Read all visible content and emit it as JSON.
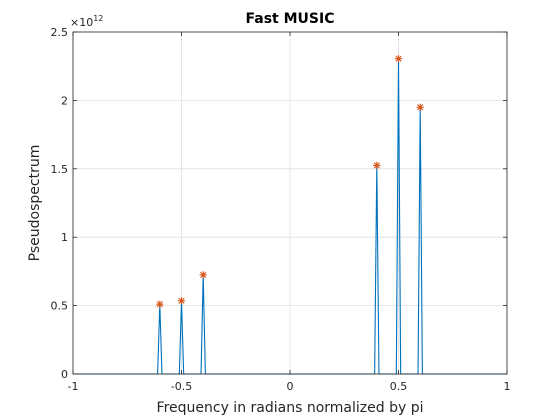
{
  "chart_data": {
    "type": "line",
    "title": "Fast MUSIC",
    "xlabel": "Frequency in radians normalized by pi",
    "ylabel": "Pseudospectrum",
    "xlim": [
      -1,
      1
    ],
    "ylim": [
      0,
      2.5
    ],
    "y_exponent_label": "×10",
    "y_exponent_power": "12",
    "x_ticks": [
      -1,
      -0.5,
      0,
      0.5,
      1
    ],
    "x_tick_labels": [
      "-1",
      "-0.5",
      "0",
      "0.5",
      "1"
    ],
    "y_ticks": [
      0,
      0.5,
      1,
      1.5,
      2,
      2.5
    ],
    "y_tick_labels": [
      "0",
      "0.5",
      "1",
      "1.5",
      "2",
      "2.5"
    ],
    "grid": true,
    "line_color": "#0072BD",
    "marker_color": "#D95319",
    "series": [
      {
        "x": [
          -1,
          -0.61,
          -0.6,
          -0.59,
          -0.51,
          -0.5,
          -0.49,
          -0.41,
          -0.4,
          -0.39,
          0.39,
          0.4,
          0.41,
          0.49,
          0.5,
          0.51,
          0.59,
          0.6,
          0.61,
          1
        ],
        "y": [
          0,
          0,
          0.51,
          0,
          0,
          0.535,
          0,
          0,
          0.725,
          0,
          0,
          1.525,
          0,
          0,
          2.305,
          0,
          0,
          1.95,
          0,
          0
        ]
      }
    ],
    "peaks": {
      "x": [
        -0.6,
        -0.5,
        -0.4,
        0.4,
        0.5,
        0.6
      ],
      "y": [
        0.51,
        0.535,
        0.725,
        1.525,
        2.305,
        1.95
      ]
    }
  }
}
